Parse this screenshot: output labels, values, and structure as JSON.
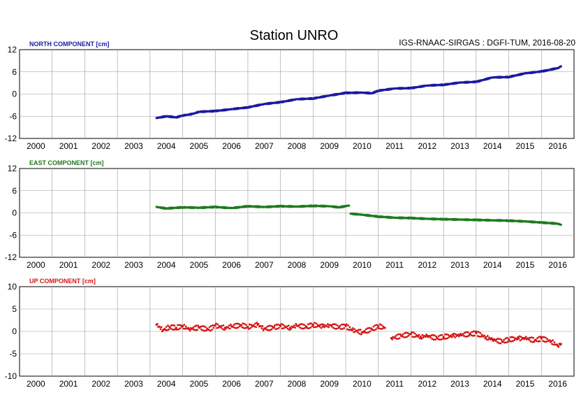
{
  "title": "Station UNRO",
  "subtitle": "IGS-RNAAC-SIRGAS : DGFI-TUM, 2016-08-20",
  "colors": {
    "north": "#1a1aa0",
    "east": "#1e7a1e",
    "up": "#d41414"
  },
  "chart_data": [
    {
      "type": "scatter",
      "title": "NORTH COMPONENT [cm]",
      "xlim": [
        1999.5,
        2016.5
      ],
      "ylim": [
        -12,
        12
      ],
      "yticks": [
        -12,
        -6,
        0,
        6,
        12
      ],
      "xtick_labels": [
        "2000",
        "2001",
        "2002",
        "2003",
        "2004",
        "2005",
        "2006",
        "2007",
        "2008",
        "2009",
        "2010",
        "2011",
        "2012",
        "2013",
        "2014",
        "2015",
        "2016"
      ],
      "grid": true,
      "series": [
        {
          "x": [
            2003.7,
            2004.0,
            2004.3,
            2004.5,
            2004.8,
            2005.0,
            2005.5,
            2006.0,
            2006.5,
            2007.0,
            2007.5,
            2008.0,
            2008.5,
            2009.0,
            2009.5,
            2010.0,
            2010.3,
            2010.5,
            2011.0,
            2011.5,
            2012.0,
            2012.5,
            2013.0,
            2013.5,
            2014.0,
            2014.5,
            2015.0,
            2015.5,
            2016.0,
            2016.1
          ],
          "y": [
            -6.5,
            -6.0,
            -6.3,
            -5.8,
            -5.4,
            -4.8,
            -4.6,
            -4.1,
            -3.6,
            -2.7,
            -2.2,
            -1.4,
            -1.2,
            -0.4,
            0.3,
            0.4,
            0.2,
            0.9,
            1.5,
            1.6,
            2.3,
            2.5,
            3.1,
            3.3,
            4.5,
            4.6,
            5.6,
            6.1,
            7.0,
            7.5
          ]
        }
      ]
    },
    {
      "type": "scatter",
      "title": "EAST COMPONENT [cm]",
      "xlim": [
        1999.5,
        2016.5
      ],
      "ylim": [
        -12,
        12
      ],
      "yticks": [
        -12,
        -6,
        0,
        6,
        12
      ],
      "xtick_labels": [
        "2000",
        "2001",
        "2002",
        "2003",
        "2004",
        "2005",
        "2006",
        "2007",
        "2008",
        "2009",
        "2010",
        "2011",
        "2012",
        "2013",
        "2014",
        "2015",
        "2016"
      ],
      "grid": true,
      "series": [
        {
          "x": [
            2003.7,
            2004.0,
            2004.5,
            2005.0,
            2005.5,
            2006.0,
            2006.5,
            2007.0,
            2007.5,
            2008.0,
            2008.5,
            2009.0,
            2009.3,
            2009.6,
            2009.65,
            2010.0,
            2010.5,
            2011.0,
            2011.5,
            2012.0,
            2012.5,
            2013.0,
            2013.5,
            2014.0,
            2014.5,
            2015.0,
            2015.5,
            2016.0,
            2016.1
          ],
          "y": [
            1.6,
            1.2,
            1.5,
            1.4,
            1.6,
            1.3,
            1.8,
            1.6,
            1.8,
            1.7,
            1.9,
            1.8,
            1.5,
            2.0,
            -0.2,
            -0.5,
            -1.0,
            -1.3,
            -1.4,
            -1.6,
            -1.7,
            -1.8,
            -1.9,
            -2.0,
            -2.1,
            -2.3,
            -2.6,
            -2.9,
            -3.2
          ]
        }
      ]
    },
    {
      "type": "scatter",
      "title": "UP COMPONENT [cm]",
      "xlim": [
        1999.5,
        2016.5
      ],
      "ylim": [
        -10,
        10
      ],
      "yticks": [
        -10,
        -5,
        0,
        5,
        10
      ],
      "xtick_labels": [
        "2000",
        "2001",
        "2002",
        "2003",
        "2004",
        "2005",
        "2006",
        "2007",
        "2008",
        "2009",
        "2010",
        "2011",
        "2012",
        "2013",
        "2014",
        "2015",
        "2016"
      ],
      "grid": true,
      "series": [
        {
          "x": [
            2003.7,
            2003.9,
            2004.1,
            2004.3,
            2004.5,
            2004.7,
            2005.0,
            2005.3,
            2005.5,
            2005.8,
            2006.0,
            2006.3,
            2006.5,
            2006.8,
            2007.0,
            2007.3,
            2007.5,
            2007.8,
            2008.0,
            2008.3,
            2008.5,
            2008.8,
            2009.0,
            2009.3,
            2009.5,
            2009.7,
            2010.0,
            2010.3,
            2010.5,
            2010.7,
            2010.9,
            2011.2,
            2011.5,
            2011.8,
            2012.0,
            2012.3,
            2012.5,
            2012.8,
            2013.0,
            2013.3,
            2013.5,
            2013.8,
            2014.0,
            2014.3,
            2014.5,
            2014.8,
            2015.0,
            2015.3,
            2015.5,
            2015.8,
            2016.0,
            2016.1
          ],
          "y": [
            1.5,
            0.3,
            1.0,
            0.8,
            1.2,
            0.5,
            0.9,
            0.4,
            1.3,
            0.8,
            1.1,
            1.4,
            1.0,
            1.5,
            0.6,
            0.9,
            1.2,
            0.8,
            1.3,
            1.0,
            1.5,
            1.1,
            1.4,
            0.9,
            1.2,
            0.3,
            -0.2,
            0.5,
            1.2,
            0.8,
            -1.5,
            -1.0,
            -0.6,
            -1.2,
            -1.0,
            -1.5,
            -1.2,
            -1.0,
            -0.8,
            -0.6,
            -0.4,
            -1.3,
            -1.8,
            -2.3,
            -1.8,
            -1.6,
            -1.5,
            -2.0,
            -1.6,
            -2.2,
            -3.2,
            -2.8
          ]
        }
      ]
    }
  ]
}
